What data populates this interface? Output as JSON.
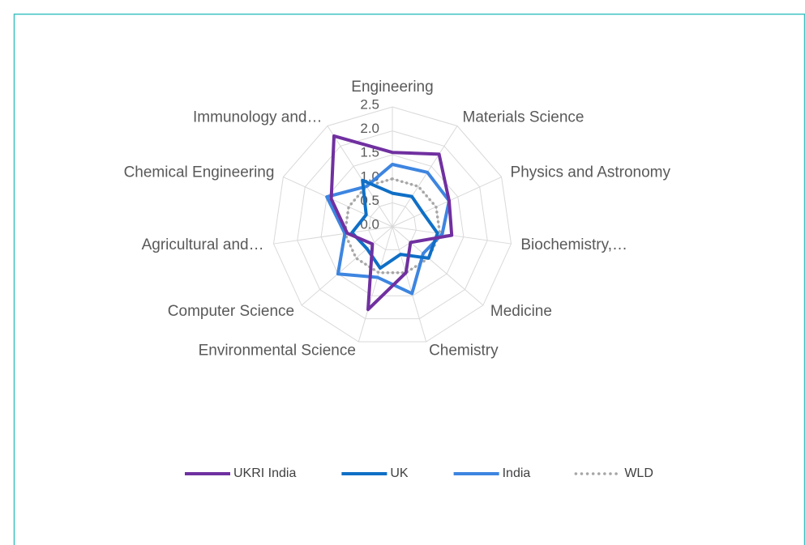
{
  "chart_data": {
    "type": "radar",
    "categories": [
      "Engineering",
      "Materials Science",
      "Physics and Astronomy",
      "Biochemistry,…",
      "Medicine",
      "Chemistry",
      "Environmental Science",
      "Computer Science",
      "Agricultural and…",
      "Chemical Engineering",
      "Immunology and…"
    ],
    "ylim": [
      0,
      2.5
    ],
    "yticks": [
      {
        "value": 0,
        "label": "0.0"
      },
      0.5,
      {
        "value": 1,
        "label": "1.0"
      },
      1.5,
      {
        "value": 2,
        "label": "2.0"
      },
      2.5
    ],
    "grid": true,
    "legend": "bottom",
    "series": [
      {
        "name": "UKRI India",
        "color": "#7030a0",
        "values": [
          1.55,
          1.8,
          1.3,
          1.25,
          0.5,
          1.0,
          1.8,
          0.55,
          0.95,
          1.4,
          2.25
        ]
      },
      {
        "name": "UK",
        "color": "#0f6fc6",
        "values": [
          0.7,
          0.75,
          0.7,
          0.95,
          1.0,
          0.6,
          0.9,
          0.7,
          0.85,
          0.6,
          1.15
        ]
      },
      {
        "name": "India",
        "color": "#3d85e0",
        "values": [
          1.3,
          1.35,
          1.3,
          1.05,
          0.85,
          1.45,
          1.1,
          1.5,
          1.0,
          1.5,
          1.0
        ]
      },
      {
        "name": "WLD",
        "color": "#a6a6a6",
        "dotted": true,
        "values": [
          1,
          1,
          1,
          1,
          1,
          1,
          1,
          1,
          1,
          1,
          1
        ]
      }
    ]
  }
}
